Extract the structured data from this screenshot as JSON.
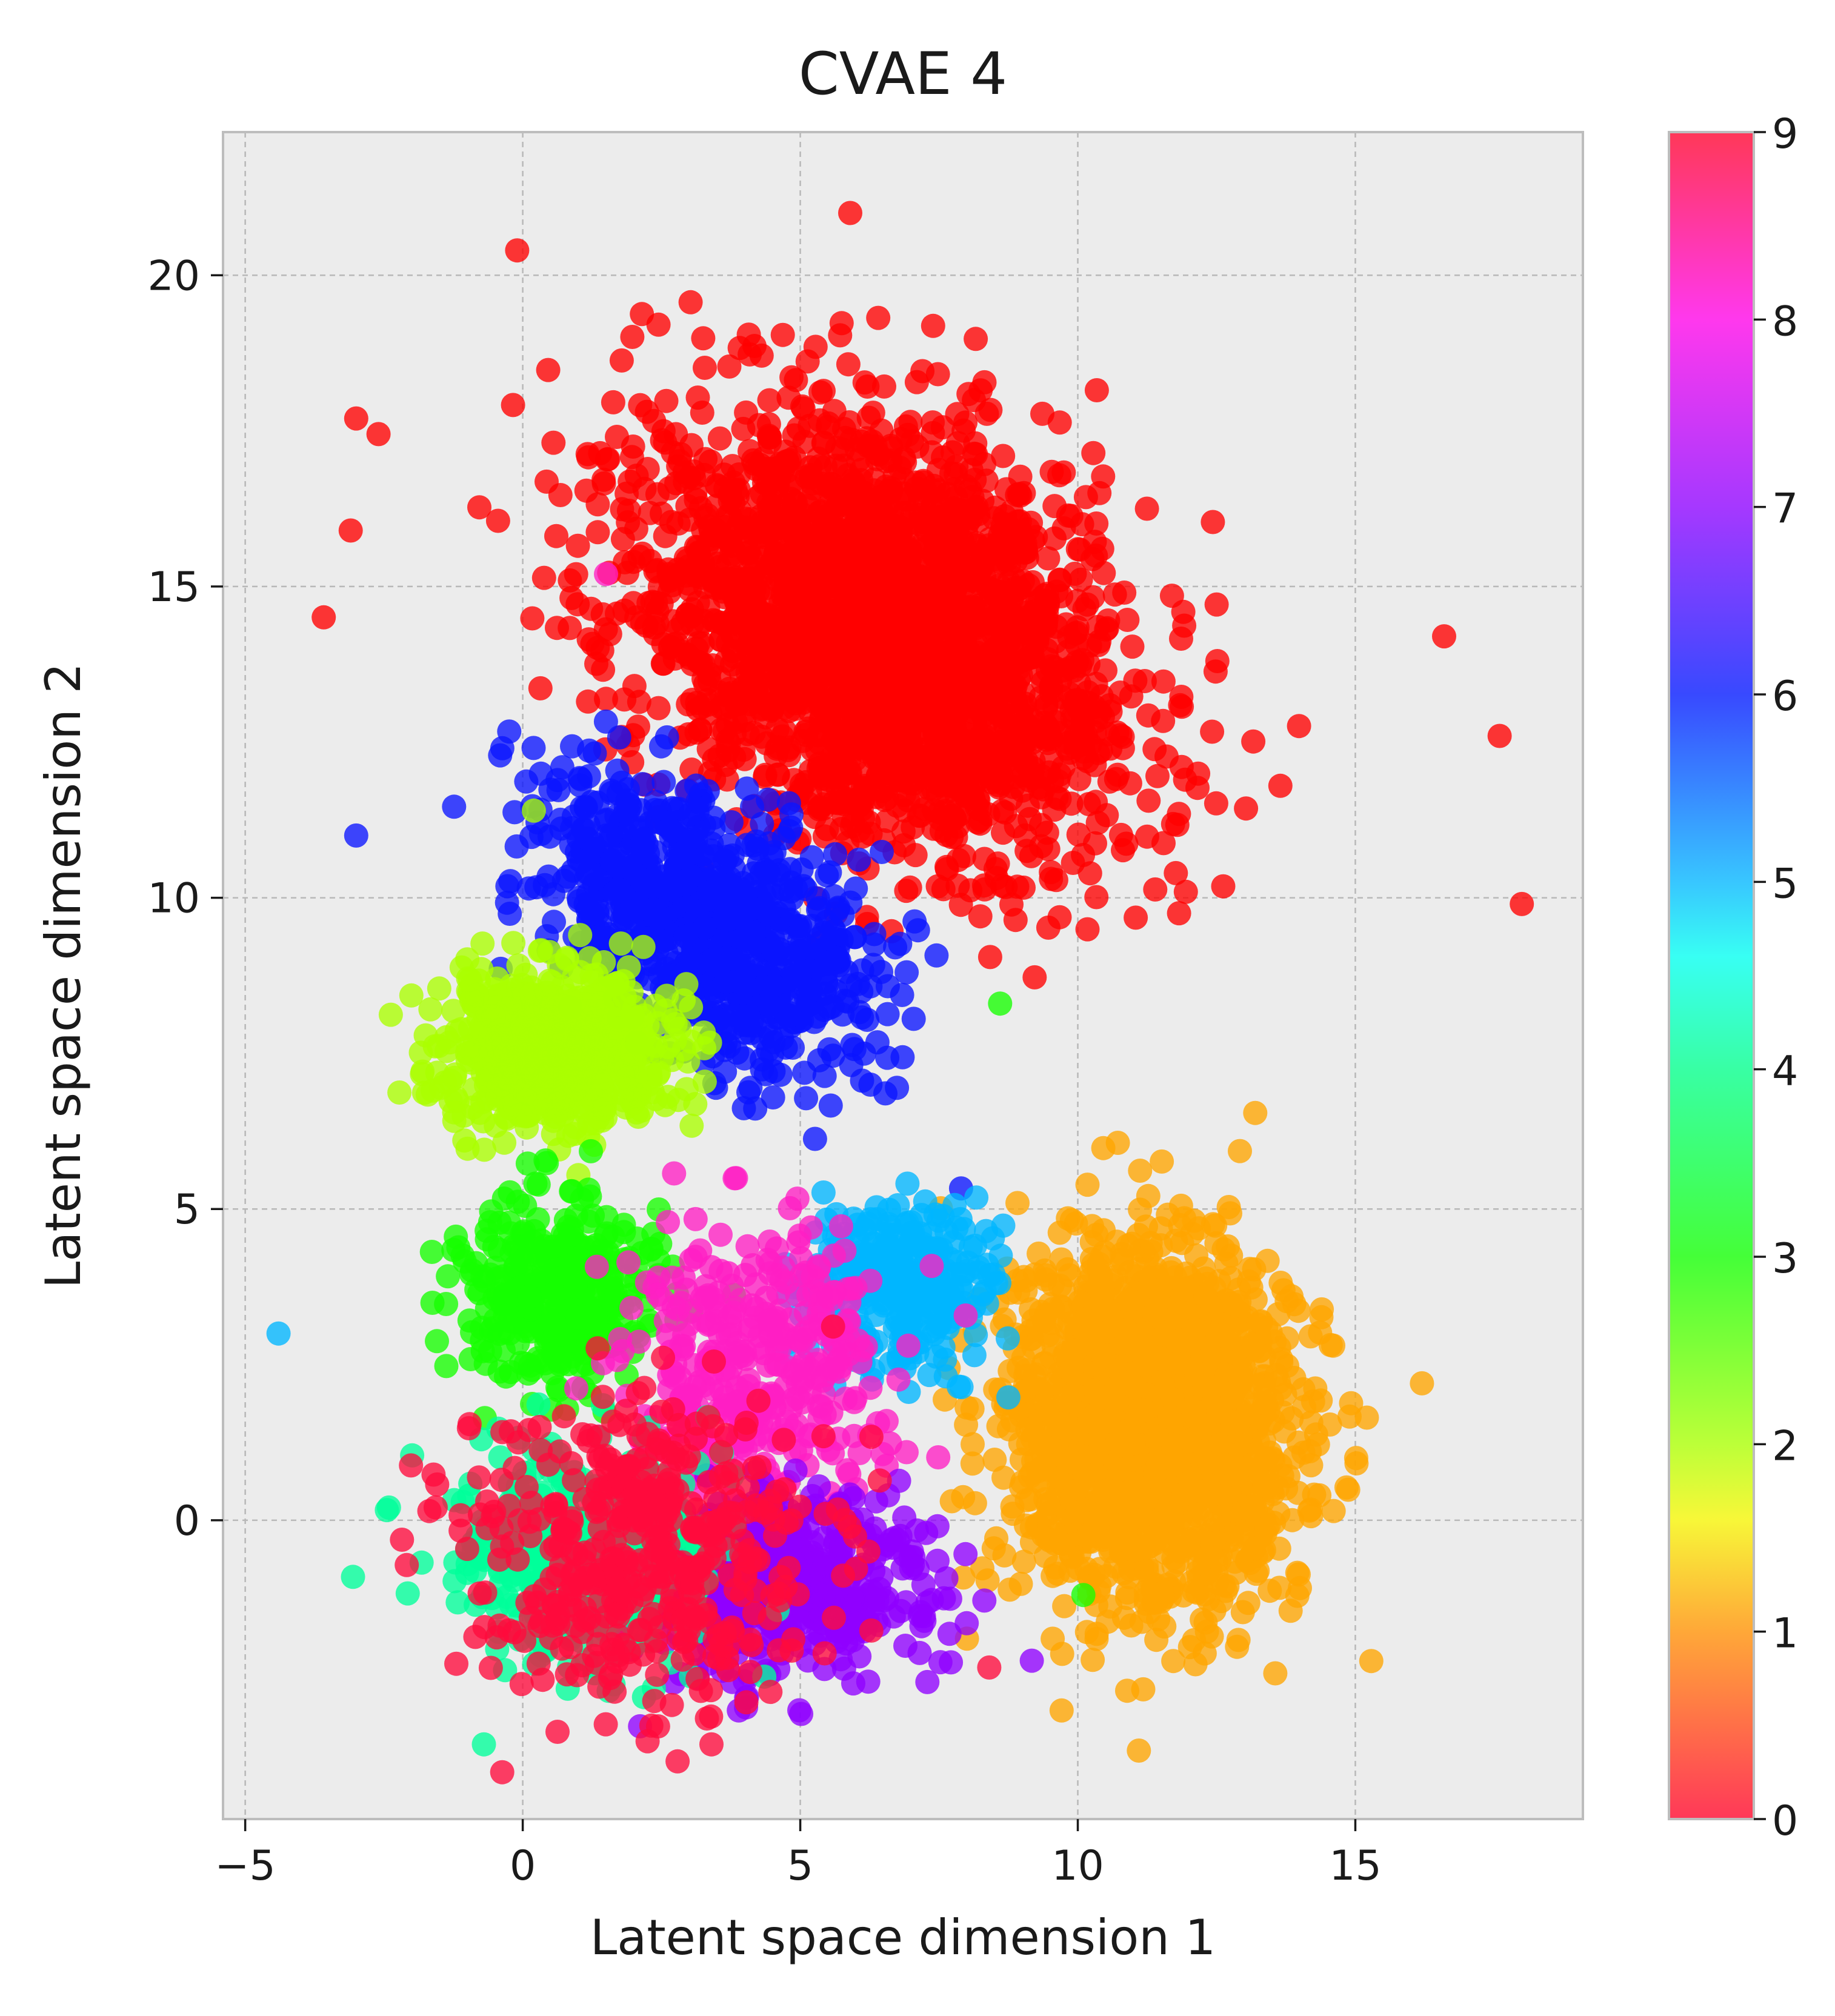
{
  "chart_data": {
    "type": "scatter",
    "title": "CVAE 4",
    "xlabel": "Latent space dimension 1",
    "ylabel": "Latent space dimension 2",
    "xlim": [
      -5.4,
      19.1
    ],
    "ylim": [
      -4.8,
      22.3
    ],
    "xticks": [
      -5,
      0,
      5,
      10,
      15
    ],
    "yticks": [
      0,
      5,
      10,
      15,
      20
    ],
    "xtick_labels": [
      "−5",
      "0",
      "5",
      "10",
      "15"
    ],
    "ytick_labels": [
      "0",
      "5",
      "10",
      "15",
      "20"
    ],
    "grid": true,
    "background": "#ececec",
    "marker_alpha": 0.78,
    "colorbar": {
      "min": 0,
      "max": 9,
      "ticks": [
        0,
        1,
        2,
        3,
        4,
        5,
        6,
        7,
        8,
        9
      ],
      "tick_labels": [
        "0",
        "1",
        "2",
        "3",
        "4",
        "5",
        "6",
        "7",
        "8",
        "9"
      ],
      "colormap": "gist_rainbow",
      "stops": [
        {
          "value": 0,
          "color": "#ff0029"
        },
        {
          "value": 1,
          "color": "#ff8f00"
        },
        {
          "value": 1.6,
          "color": "#f5f500"
        },
        {
          "value": 2,
          "color": "#a9ff00"
        },
        {
          "value": 3,
          "color": "#10ff00"
        },
        {
          "value": 4,
          "color": "#00ff8a"
        },
        {
          "value": 4.6,
          "color": "#00fff0"
        },
        {
          "value": 5,
          "color": "#00b6ff"
        },
        {
          "value": 6,
          "color": "#0016ff"
        },
        {
          "value": 7,
          "color": "#8c00ff"
        },
        {
          "value": 8,
          "color": "#ff00e8"
        },
        {
          "value": 9,
          "color": "#ff0029"
        }
      ]
    },
    "clusters": [
      {
        "label": 9,
        "color": "#ff0000",
        "center": [
          6.5,
          14.2
        ],
        "spread": [
          4.2,
          2.9
        ],
        "rotation_deg": -28,
        "count": 2600
      },
      {
        "label": 6,
        "color": "#0a14ff",
        "center": [
          3.3,
          9.6
        ],
        "spread": [
          3.0,
          1.6
        ],
        "rotation_deg": -32,
        "count": 900
      },
      {
        "label": 2,
        "color": "#aaff00",
        "center": [
          0.6,
          7.6
        ],
        "spread": [
          1.9,
          1.1
        ],
        "rotation_deg": 0,
        "count": 700
      },
      {
        "label": 1,
        "color": "#ffa500",
        "center": [
          11.3,
          1.5
        ],
        "spread": [
          2.3,
          2.6
        ],
        "rotation_deg": 0,
        "count": 1900
      },
      {
        "label": 3,
        "color": "#16ff00",
        "center": [
          0.6,
          3.6
        ],
        "spread": [
          1.6,
          1.3
        ],
        "rotation_deg": 0,
        "count": 380
      },
      {
        "label": 5,
        "color": "#00b6ff",
        "center": [
          6.8,
          3.8
        ],
        "spread": [
          1.6,
          1.2
        ],
        "rotation_deg": 0,
        "count": 300
      },
      {
        "label": 8,
        "color": "#ff1fc4",
        "center": [
          4.2,
          2.6
        ],
        "spread": [
          2.2,
          1.8
        ],
        "rotation_deg": 0,
        "count": 360
      },
      {
        "label": 7,
        "color": "#8f00ff",
        "center": [
          4.6,
          -1.0
        ],
        "spread": [
          2.5,
          1.3
        ],
        "rotation_deg": 0,
        "count": 520
      },
      {
        "label": 4,
        "color": "#00ff9a",
        "center": [
          1.0,
          -0.6
        ],
        "spread": [
          2.1,
          1.6
        ],
        "rotation_deg": 0,
        "count": 420
      },
      {
        "label": 0,
        "color": "#ff0a3c",
        "center": [
          2.0,
          -0.5
        ],
        "spread": [
          3.1,
          2.2
        ],
        "rotation_deg": 0,
        "count": 460
      }
    ],
    "outliers": [
      {
        "x": -4.4,
        "y": 3.0,
        "label": 5
      },
      {
        "x": 5.9,
        "y": 21.0,
        "label": 9
      },
      {
        "x": 18.0,
        "y": 9.9,
        "label": 9
      },
      {
        "x": 17.6,
        "y": 12.6,
        "label": 9
      },
      {
        "x": 16.6,
        "y": 14.2,
        "label": 9
      },
      {
        "x": 16.2,
        "y": 2.2,
        "label": 1
      },
      {
        "x": 11.1,
        "y": -3.7,
        "label": 1
      },
      {
        "x": 3.4,
        "y": -3.6,
        "label": 0
      },
      {
        "x": -0.7,
        "y": -3.6,
        "label": 4
      },
      {
        "x": -3.0,
        "y": 17.7,
        "label": 9
      },
      {
        "x": -3.1,
        "y": 15.9,
        "label": 9
      },
      {
        "x": -0.1,
        "y": 20.4,
        "label": 9
      },
      {
        "x": 1.5,
        "y": 15.2,
        "label": 8
      },
      {
        "x": 8.6,
        "y": 8.3,
        "label": 3
      },
      {
        "x": 0.2,
        "y": 11.4,
        "label": 2
      },
      {
        "x": -3.0,
        "y": 11.0,
        "label": 6
      },
      {
        "x": 10.1,
        "y": -1.2,
        "label": 3
      },
      {
        "x": 12.3,
        "y": 3.6,
        "label": 1
      }
    ]
  }
}
